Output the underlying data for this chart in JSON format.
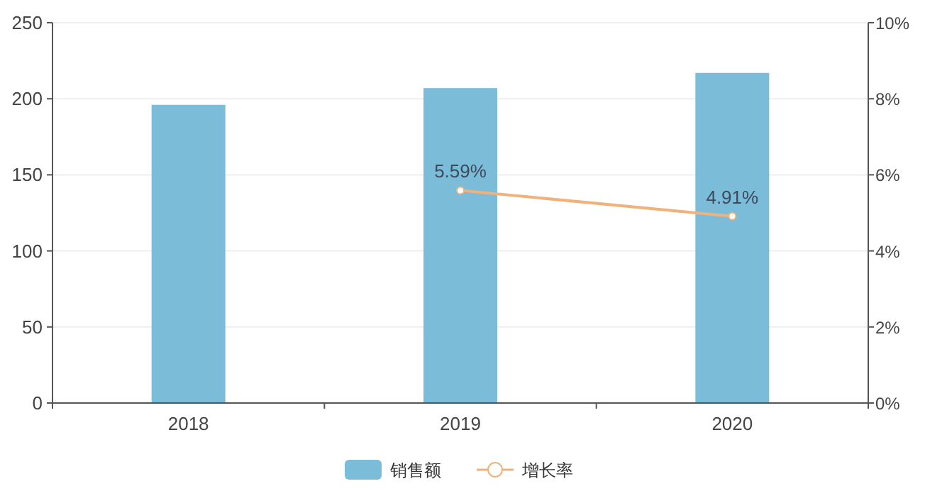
{
  "chart_data": {
    "type": "bar",
    "categories": [
      "2018",
      "2019",
      "2020"
    ],
    "series": [
      {
        "name": "销售额",
        "color": "#7bbcd9",
        "values": [
          196,
          207,
          217
        ]
      },
      {
        "name": "增长率",
        "type": "line",
        "axis": "y2",
        "color": "#f0b27a",
        "marker": "circle",
        "values": [
          null,
          5.59,
          4.91
        ],
        "value_labels": [
          null,
          "5.59%",
          "4.91%"
        ]
      }
    ],
    "ylim": [
      0,
      250
    ],
    "yticks": [
      0,
      50,
      100,
      150,
      200,
      250
    ],
    "y2lim": [
      0,
      10
    ],
    "y2ticks": [
      {
        "value": 0,
        "label": "0%"
      },
      {
        "value": 2,
        "label": "2%"
      },
      {
        "value": 4,
        "label": "4%"
      },
      {
        "value": 6,
        "label": "6%"
      },
      {
        "value": 8,
        "label": "8%"
      },
      {
        "value": 10,
        "label": "10%"
      }
    ],
    "grid": "y",
    "legend": "bottom"
  }
}
